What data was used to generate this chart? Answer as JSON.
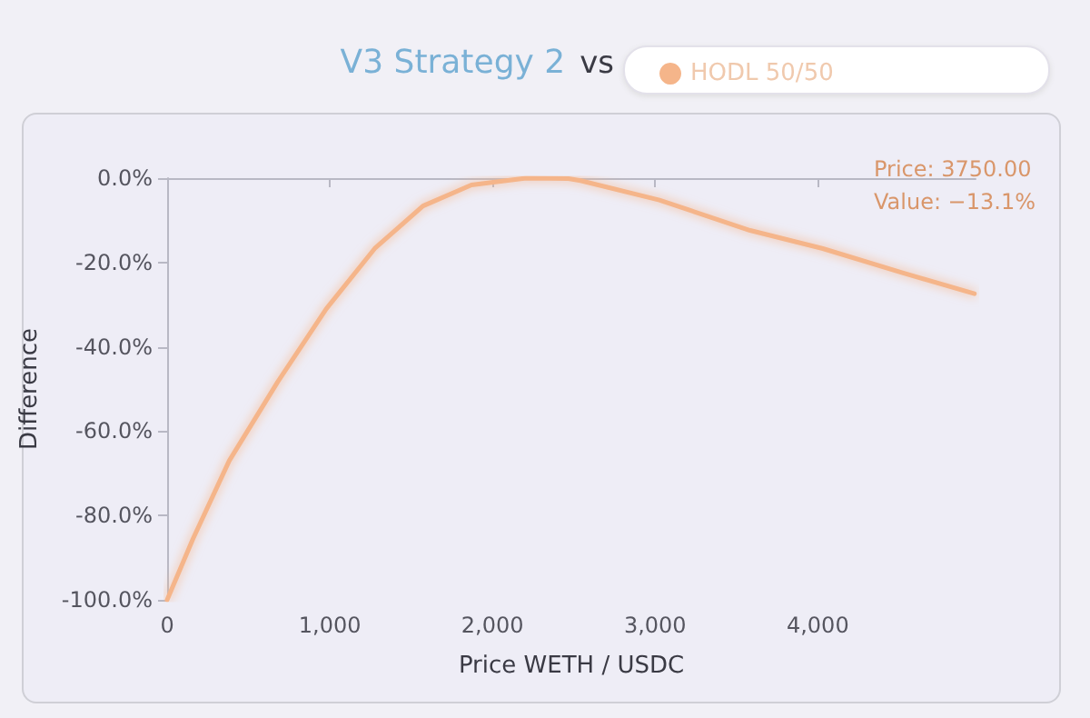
{
  "chart_data": {
    "type": "line",
    "title": "V3 Strategy 2",
    "subtitle": "vs",
    "xlabel": "Price WETH / USDC",
    "ylabel": "Difference",
    "annotations": [
      "Price: 3750.00",
      "Value: −13.1%"
    ],
    "x": [
      0,
      158,
      382,
      680,
      978,
      1276,
      1573,
      1871,
      2207,
      2467,
      2542,
      3026,
      3584,
      4031,
      4516,
      4963
    ],
    "series": [
      {
        "name": "HODL 50/50",
        "color": "#f5b58a",
        "values": [
          -100,
          -85.6,
          -67,
          -48.3,
          -31,
          -16.7,
          -6.6,
          -1.6,
          0,
          -0.1,
          -0.6,
          -5.2,
          -12.4,
          -16.7,
          -22.4,
          -27.4
        ]
      }
    ],
    "xlim": [
      0,
      4970
    ],
    "ylim": [
      -100,
      0
    ],
    "xticks": [
      {
        "value": 0,
        "label": "0"
      },
      {
        "value": 1000,
        "label": "1,000"
      },
      {
        "value": 2000,
        "label": "2,000"
      },
      {
        "value": 3000,
        "label": "3,000"
      },
      {
        "value": 4000,
        "label": "4,000"
      }
    ],
    "yticks": [
      {
        "value": -100,
        "label": "-100.0%"
      },
      {
        "value": -80,
        "label": "-80.0%"
      },
      {
        "value": -60,
        "label": "-60.0%"
      },
      {
        "value": -40,
        "label": "-40.0%"
      },
      {
        "value": -20,
        "label": "-20.0%"
      },
      {
        "value": 0,
        "label": "0.0%"
      }
    ],
    "grid": false,
    "legend": "top right",
    "marker": "none",
    "line_style": "solid"
  }
}
